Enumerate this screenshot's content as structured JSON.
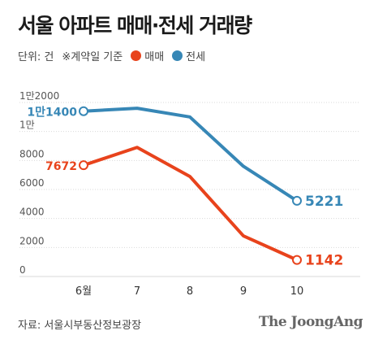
{
  "header": {
    "title": "서울 아파트 매매·전세 거래량"
  },
  "legend": {
    "unit": "단위: 건",
    "basis": "※계약일 기준",
    "items": [
      {
        "label": "매매",
        "color": "#e8431c"
      },
      {
        "label": "전세",
        "color": "#3787b6"
      }
    ]
  },
  "chart_data": {
    "type": "line",
    "categories": [
      "6월",
      "7",
      "8",
      "9",
      "10"
    ],
    "series": [
      {
        "name": "전세",
        "color": "#3787b6",
        "values": [
          11400,
          11600,
          11000,
          7600,
          5221
        ]
      },
      {
        "name": "매매",
        "color": "#e8431c",
        "values": [
          7672,
          8900,
          6900,
          2800,
          1142
        ]
      }
    ],
    "y_ticks": [
      {
        "value": 0,
        "label": "0"
      },
      {
        "value": 2000,
        "label": "2000"
      },
      {
        "value": 4000,
        "label": "4000"
      },
      {
        "value": 6000,
        "label": "6000"
      },
      {
        "value": 8000,
        "label": "8000"
      },
      {
        "value": 10000,
        "label": "1만"
      },
      {
        "value": 12000,
        "label": "1만2000"
      }
    ],
    "ylim": [
      0,
      12000
    ],
    "grid": true,
    "annotations": [
      {
        "series": "전세",
        "index": 0,
        "label": "1만1400",
        "side": "left",
        "emphasis": false
      },
      {
        "series": "전세",
        "index": 4,
        "label": "5221",
        "side": "right",
        "emphasis": true
      },
      {
        "series": "매매",
        "index": 0,
        "label": "7672",
        "side": "left",
        "emphasis": false
      },
      {
        "series": "매매",
        "index": 4,
        "label": "1142",
        "side": "right",
        "emphasis": true
      }
    ]
  },
  "footer": {
    "source": "자료: 서울시부동산정보광장",
    "brand": "The JoongAng"
  }
}
